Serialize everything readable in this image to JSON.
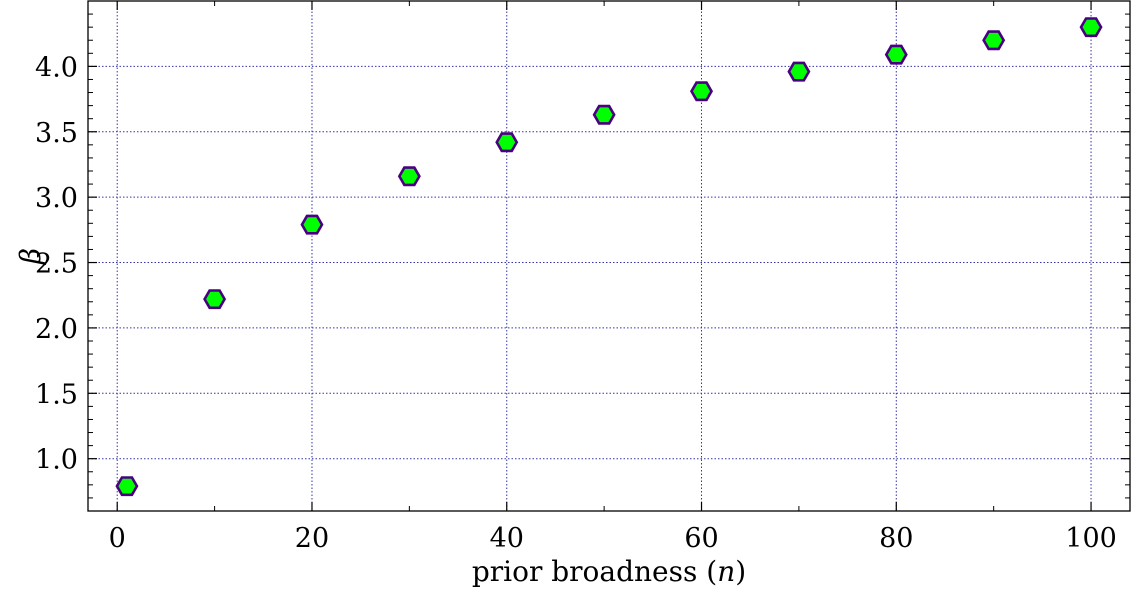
{
  "chart_data": {
    "type": "scatter",
    "xlabel": "prior broadness (n)",
    "xlabel_parts": {
      "pre": "prior broadness (",
      "var": "n",
      "post": ")"
    },
    "ylabel": "β",
    "x": [
      1,
      10,
      20,
      30,
      40,
      50,
      60,
      70,
      80,
      90,
      100
    ],
    "y": [
      0.79,
      2.22,
      2.79,
      3.16,
      3.42,
      3.63,
      3.81,
      3.96,
      4.09,
      4.2,
      4.3
    ],
    "xlim": [
      -3,
      104
    ],
    "ylim": [
      0.6,
      4.5
    ],
    "xticks": [
      0,
      20,
      40,
      60,
      80,
      100
    ],
    "xtick_labels": [
      "0",
      "20",
      "40",
      "60",
      "80",
      "100"
    ],
    "yticks": [
      1.0,
      1.5,
      2.0,
      2.5,
      3.0,
      3.5,
      4.0
    ],
    "ytick_labels": [
      "1.0",
      "1.5",
      "2.0",
      "2.5",
      "3.0",
      "3.5",
      "4.0"
    ],
    "marker": "hexagon",
    "marker_fill": "#00ff00",
    "marker_edge": "#4b0082",
    "grid": true,
    "grid_color": "#3333aa"
  }
}
